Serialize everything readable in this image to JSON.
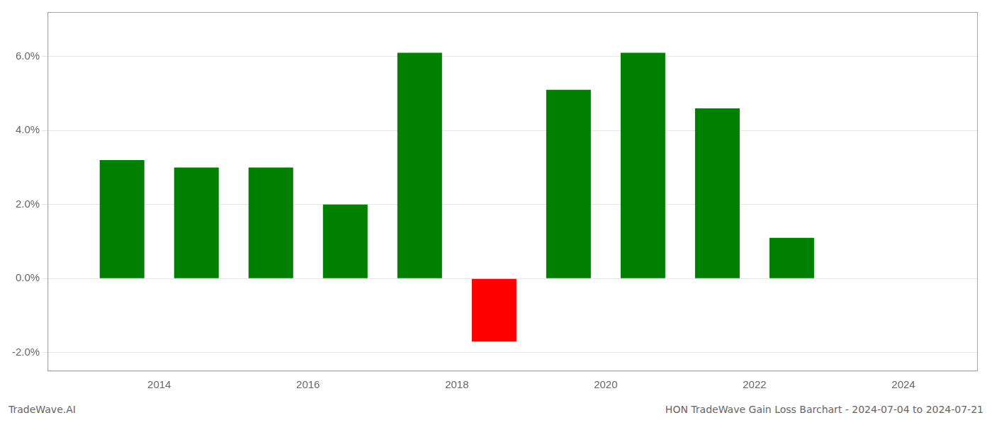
{
  "chart_data": {
    "type": "bar",
    "x": [
      2013.5,
      2014.5,
      2015.5,
      2016.5,
      2017.5,
      2018.5,
      2019.5,
      2020.5,
      2021.5,
      2022.5
    ],
    "values": [
      0.032,
      0.03,
      0.03,
      0.02,
      0.061,
      -0.017,
      0.051,
      0.061,
      0.046,
      0.011
    ],
    "colors": [
      "#008000",
      "#008000",
      "#008000",
      "#008000",
      "#008000",
      "#ff0000",
      "#008000",
      "#008000",
      "#008000",
      "#008000"
    ],
    "xlim": [
      2012.5,
      2025.0
    ],
    "xticks": [
      2014,
      2016,
      2018,
      2020,
      2022,
      2024
    ],
    "ylim": [
      -0.025,
      0.072
    ],
    "yticks": [
      {
        "value": -0.02,
        "label": "-2.0%"
      },
      {
        "value": 0.0,
        "label": "0.0%"
      },
      {
        "value": 0.02,
        "label": "2.0%"
      },
      {
        "value": 0.04,
        "label": "4.0%"
      },
      {
        "value": 0.06,
        "label": "6.0%"
      }
    ],
    "grid": true,
    "annotations": [
      "TradeWave.AI",
      "HON TradeWave Gain Loss Barchart - 2024-07-04 to 2024-07-21"
    ]
  }
}
